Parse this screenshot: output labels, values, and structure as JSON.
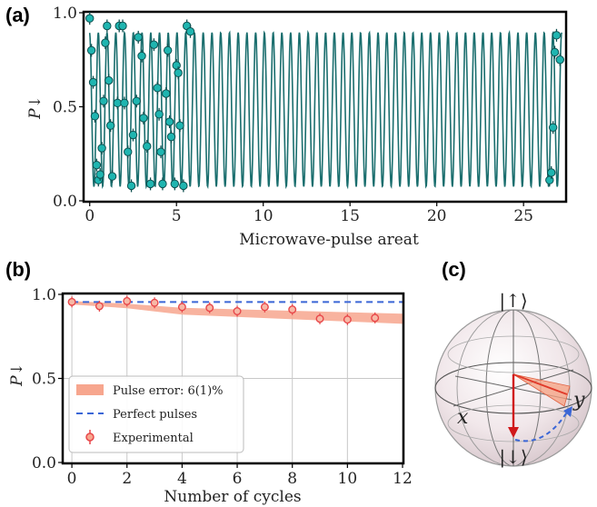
{
  "panels": {
    "a": "(a)",
    "b": "(b)",
    "c": "(c)"
  },
  "chart_data": [
    {
      "id": "a",
      "type": "line",
      "xlabel": "Microwave-pulse areat",
      "ylabel": "P↓",
      "xlim": [
        -0.3,
        27.4
      ],
      "ylim": [
        0,
        1
      ],
      "xticks": [
        0,
        5,
        10,
        15,
        20,
        25
      ],
      "yticks": [
        0.0,
        0.5,
        1.0
      ],
      "yticklabels": [
        "0.0",
        "0.5",
        "1.0"
      ],
      "grid": false,
      "colors": {
        "line": "#1a6e6e",
        "marker": "#1fb5b0",
        "marker_edge": "#0e4f4f"
      },
      "model": {
        "name": "fit",
        "offset": 0.485,
        "amplitude": 0.41,
        "frequency_cycles_per_unit": 1.985,
        "phase": 0.1,
        "x_range": [
          0,
          27.2
        ]
      },
      "series": [
        {
          "name": "",
          "x": [
            0.0,
            0.1,
            0.2,
            0.3,
            0.4,
            0.5,
            0.6,
            0.7,
            0.8,
            0.9,
            1.0,
            1.1,
            1.2,
            1.3,
            1.6,
            1.7,
            1.9,
            2.0,
            2.2,
            2.4,
            2.5,
            2.7,
            2.8,
            3.0,
            3.1,
            3.3,
            3.5,
            3.7,
            3.9,
            4.0,
            4.1,
            4.2,
            4.4,
            4.5,
            4.6,
            4.7,
            4.9,
            5.0,
            5.1,
            5.2,
            5.4,
            5.6,
            5.8,
            26.5,
            26.6,
            26.7,
            26.8,
            26.9,
            27.1
          ],
          "y": [
            0.97,
            0.8,
            0.63,
            0.45,
            0.19,
            0.11,
            0.14,
            0.28,
            0.53,
            0.84,
            0.93,
            0.64,
            0.4,
            0.13,
            0.52,
            0.93,
            0.93,
            0.52,
            0.26,
            0.08,
            0.35,
            0.53,
            0.87,
            0.77,
            0.44,
            0.29,
            0.09,
            0.83,
            0.6,
            0.46,
            0.26,
            0.09,
            0.57,
            0.8,
            0.42,
            0.34,
            0.09,
            0.72,
            0.68,
            0.4,
            0.08,
            0.93,
            0.9,
            0.11,
            0.15,
            0.39,
            0.79,
            0.88,
            0.75
          ]
        }
      ]
    },
    {
      "id": "b",
      "type": "line",
      "xlabel": "Number of cycles",
      "ylabel": "P↓",
      "xlim": [
        -0.3,
        12
      ],
      "ylim": [
        0,
        1
      ],
      "xticks": [
        0,
        2,
        4,
        6,
        8,
        10,
        12
      ],
      "yticks": [
        0.0,
        0.5,
        1.0
      ],
      "yticklabels": [
        "0.0",
        "0.5",
        "1.0"
      ],
      "grid": true,
      "legend_position": "lower-left",
      "colors": {
        "band": "#f7a68e",
        "perfect": "#3a66d6",
        "experimental": "#e8474a"
      },
      "band": {
        "x": [
          0,
          2,
          4,
          12
        ],
        "upper": [
          0.96,
          0.945,
          0.92,
          0.885
        ],
        "lower": [
          0.94,
          0.918,
          0.88,
          0.825
        ]
      },
      "perfect_value": 0.955,
      "series": [
        {
          "name": "Experimental",
          "x": [
            0,
            1,
            2,
            3,
            4,
            5,
            6,
            7,
            8,
            9,
            10,
            11
          ],
          "y": [
            0.955,
            0.93,
            0.96,
            0.95,
            0.925,
            0.92,
            0.9,
            0.925,
            0.91,
            0.855,
            0.85,
            0.86
          ]
        }
      ],
      "legend": [
        {
          "kind": "band",
          "label": "Pulse error: 6(1)%"
        },
        {
          "kind": "dashed",
          "label": "Perfect pulses"
        },
        {
          "kind": "marker",
          "label": "Experimental"
        }
      ]
    }
  ],
  "bloch": {
    "up_ket": "|↑⟩",
    "down_ket": "|↓⟩",
    "x_label": "x",
    "y_label": "y"
  }
}
